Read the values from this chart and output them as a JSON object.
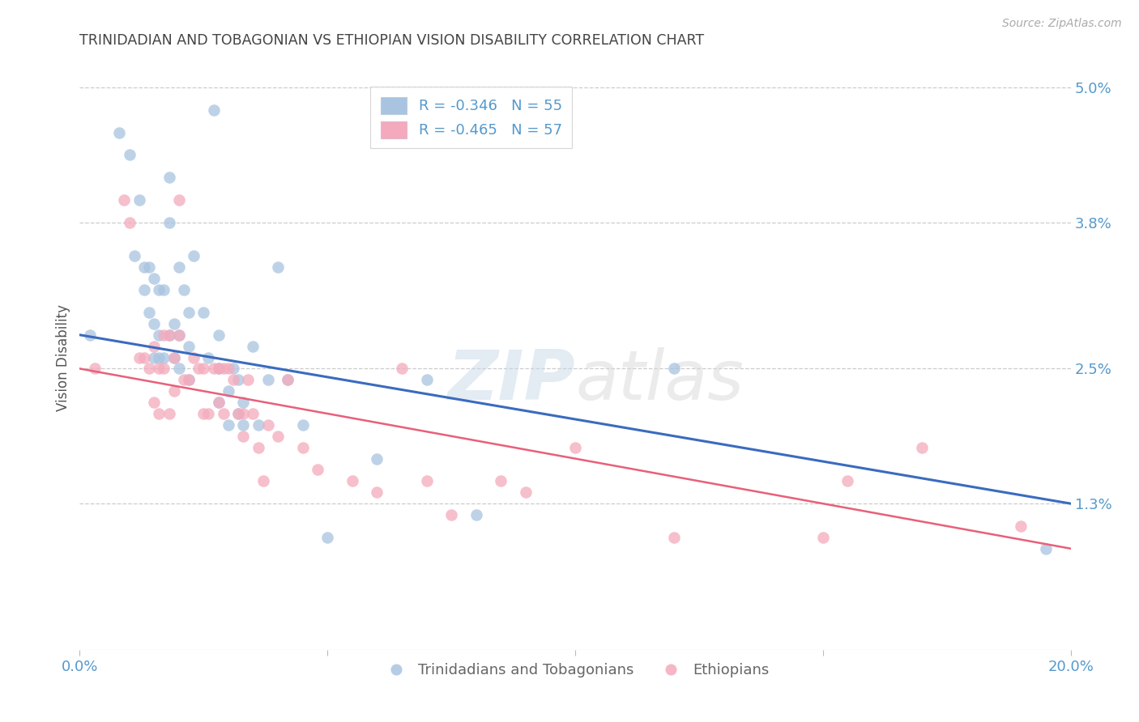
{
  "title": "TRINIDADIAN AND TOBAGONIAN VS ETHIOPIAN VISION DISABILITY CORRELATION CHART",
  "source": "Source: ZipAtlas.com",
  "ylabel": "Vision Disability",
  "watermark": "ZIPatlas",
  "xlim": [
    0.0,
    0.2
  ],
  "ylim": [
    0.0,
    0.052
  ],
  "xticks": [
    0.0,
    0.05,
    0.1,
    0.15,
    0.2
  ],
  "xticklabels": [
    "0.0%",
    "",
    "",
    "",
    "20.0%"
  ],
  "ytick_positions": [
    0.013,
    0.025,
    0.038,
    0.05
  ],
  "ytick_labels": [
    "1.3%",
    "2.5%",
    "3.8%",
    "5.0%"
  ],
  "grid_color": "#cccccc",
  "background_color": "#ffffff",
  "blue_color": "#a8c4e0",
  "pink_color": "#f4aabc",
  "blue_line_color": "#3a6bbf",
  "pink_line_color": "#e8607a",
  "axis_tick_color": "#5599cc",
  "legend_text_color": "#333333",
  "legend_value_color": "#5599cc",
  "blue_label": "Trinidadians and Tobagonians",
  "pink_label": "Ethiopians",
  "blue_scatter_x": [
    0.002,
    0.008,
    0.01,
    0.011,
    0.012,
    0.013,
    0.013,
    0.014,
    0.014,
    0.015,
    0.015,
    0.015,
    0.016,
    0.016,
    0.016,
    0.017,
    0.017,
    0.018,
    0.018,
    0.018,
    0.019,
    0.019,
    0.02,
    0.02,
    0.02,
    0.021,
    0.022,
    0.022,
    0.022,
    0.023,
    0.025,
    0.026,
    0.027,
    0.028,
    0.028,
    0.028,
    0.03,
    0.03,
    0.031,
    0.032,
    0.032,
    0.033,
    0.033,
    0.035,
    0.036,
    0.038,
    0.04,
    0.042,
    0.045,
    0.05,
    0.06,
    0.07,
    0.08,
    0.12,
    0.195
  ],
  "blue_scatter_y": [
    0.028,
    0.046,
    0.044,
    0.035,
    0.04,
    0.034,
    0.032,
    0.034,
    0.03,
    0.033,
    0.029,
    0.026,
    0.032,
    0.028,
    0.026,
    0.032,
    0.026,
    0.042,
    0.038,
    0.028,
    0.029,
    0.026,
    0.034,
    0.028,
    0.025,
    0.032,
    0.03,
    0.027,
    0.024,
    0.035,
    0.03,
    0.026,
    0.048,
    0.028,
    0.025,
    0.022,
    0.023,
    0.02,
    0.025,
    0.024,
    0.021,
    0.022,
    0.02,
    0.027,
    0.02,
    0.024,
    0.034,
    0.024,
    0.02,
    0.01,
    0.017,
    0.024,
    0.012,
    0.025,
    0.009
  ],
  "pink_scatter_x": [
    0.003,
    0.009,
    0.01,
    0.012,
    0.013,
    0.014,
    0.015,
    0.015,
    0.016,
    0.016,
    0.017,
    0.017,
    0.018,
    0.018,
    0.019,
    0.019,
    0.02,
    0.02,
    0.021,
    0.022,
    0.023,
    0.024,
    0.025,
    0.025,
    0.026,
    0.027,
    0.028,
    0.028,
    0.029,
    0.029,
    0.03,
    0.031,
    0.032,
    0.033,
    0.033,
    0.034,
    0.035,
    0.036,
    0.037,
    0.038,
    0.04,
    0.042,
    0.045,
    0.048,
    0.055,
    0.06,
    0.065,
    0.07,
    0.075,
    0.085,
    0.09,
    0.1,
    0.12,
    0.15,
    0.155,
    0.17,
    0.19
  ],
  "pink_scatter_y": [
    0.025,
    0.04,
    0.038,
    0.026,
    0.026,
    0.025,
    0.027,
    0.022,
    0.025,
    0.021,
    0.028,
    0.025,
    0.028,
    0.021,
    0.026,
    0.023,
    0.04,
    0.028,
    0.024,
    0.024,
    0.026,
    0.025,
    0.025,
    0.021,
    0.021,
    0.025,
    0.025,
    0.022,
    0.025,
    0.021,
    0.025,
    0.024,
    0.021,
    0.021,
    0.019,
    0.024,
    0.021,
    0.018,
    0.015,
    0.02,
    0.019,
    0.024,
    0.018,
    0.016,
    0.015,
    0.014,
    0.025,
    0.015,
    0.012,
    0.015,
    0.014,
    0.018,
    0.01,
    0.01,
    0.015,
    0.018,
    0.011
  ],
  "blue_line_y_start": 0.028,
  "blue_line_y_end": 0.013,
  "pink_line_y_start": 0.025,
  "pink_line_y_end": 0.009
}
